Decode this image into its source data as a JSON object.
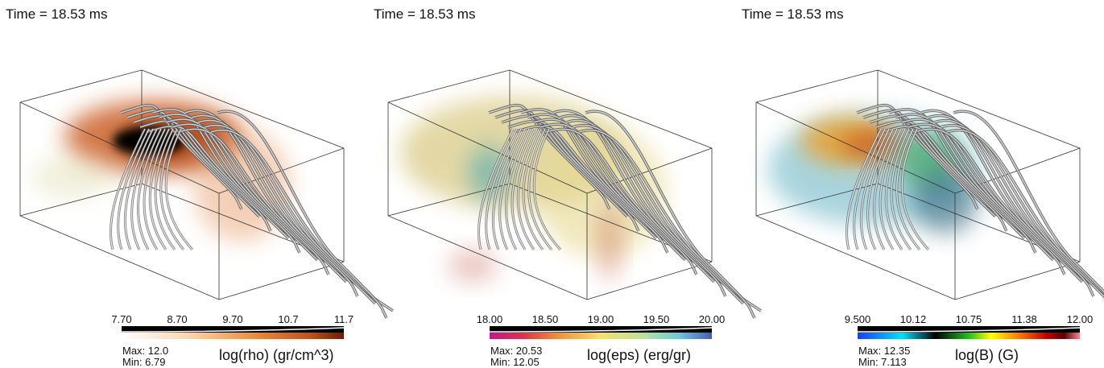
{
  "panels": [
    {
      "time": "Time = 18.53 ms",
      "ticks": [
        "7.70",
        "8.70",
        "9.70",
        "10.7",
        "11.7"
      ],
      "max": "Max: 12.0",
      "min": "Min: 6.79",
      "label": "log(rho) (gr/cm^3)"
    },
    {
      "time": "Time = 18.53 ms",
      "ticks": [
        "18.00",
        "18.50",
        "19.00",
        "19.50",
        "20.00"
      ],
      "max": "Max: 20.53",
      "min": "Min: 12.05",
      "label": "log(eps) (erg/gr)"
    },
    {
      "time": "Time = 18.53 ms",
      "ticks": [
        "9.500",
        "10.12",
        "10.75",
        "11.38",
        "12.00"
      ],
      "max": "Max: 12.35",
      "min": "Min: 7.113",
      "label": "log(B) (G)"
    }
  ]
}
